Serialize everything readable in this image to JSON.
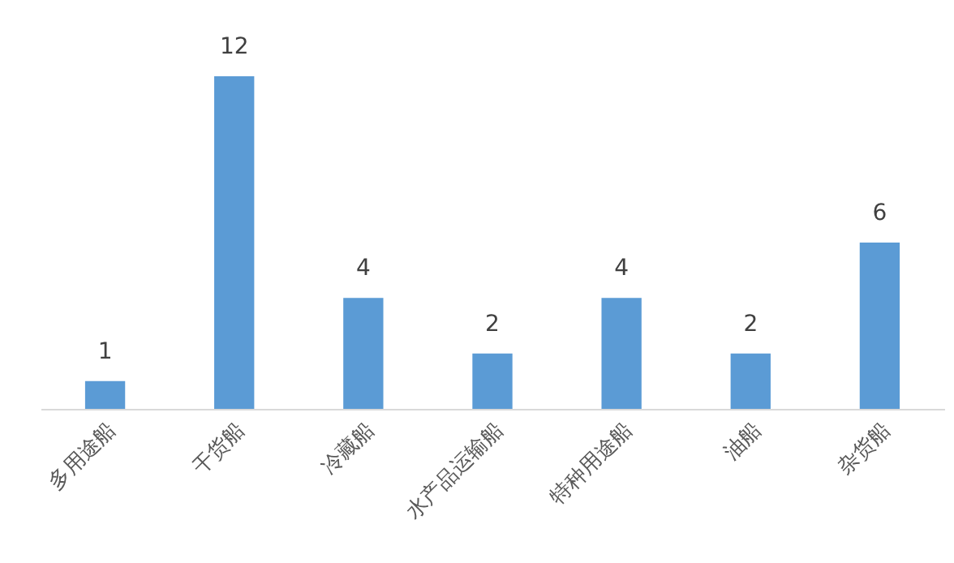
{
  "chart_data": {
    "type": "bar",
    "categories": [
      "多用途船",
      "干货船",
      "冷藏船",
      "水产品运输船",
      "特种用途船",
      "油船",
      "杂货船"
    ],
    "values": [
      1,
      12,
      4,
      2,
      4,
      2,
      6
    ],
    "color": "#5b9bd5",
    "data_labels": true
  }
}
